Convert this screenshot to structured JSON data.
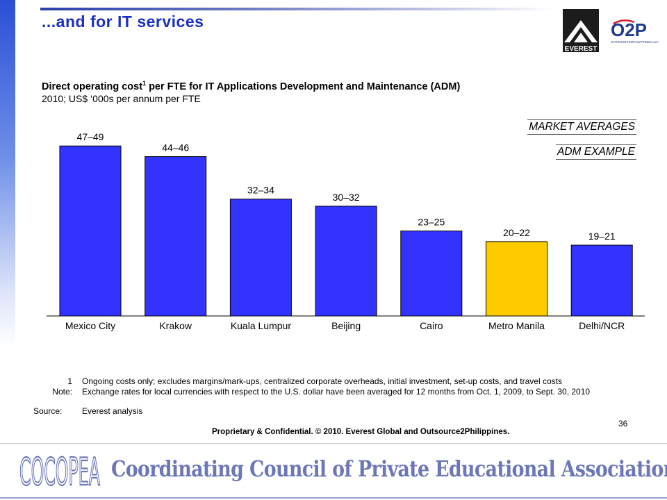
{
  "slide": {
    "title": "...and for IT services",
    "page_number": "36",
    "confidential": "Proprietary & Confidential. © 2010. Everest Global and Outsource2Philippines.",
    "logos": {
      "everest_text": "EVEREST",
      "o2p_text": "O2P",
      "o2p_tagline": "OUTSOURCE2PHILIPPINES.com"
    }
  },
  "chart_data": {
    "type": "bar",
    "title": "Direct operating cost",
    "title_sup": "1",
    "title_rest": " per FTE for IT Applications Development and Maintenance (ADM)",
    "subtitle": "2010; US$ ‘000s per annum per FTE",
    "categories": [
      "Mexico City",
      "Krakow",
      "Kuala Lumpur",
      "Beijing",
      "Cairo",
      "Metro Manila",
      "Delhi/NCR"
    ],
    "range_labels": [
      "47–49",
      "44–46",
      "32–34",
      "30–32",
      "23–25",
      "20–22",
      "19–21"
    ],
    "values": [
      48,
      45,
      33,
      31,
      24,
      21,
      20
    ],
    "highlight_index": 5,
    "ylim": [
      0,
      50
    ],
    "legend": {
      "market": "MARKET AVERAGES",
      "example": "ADM EXAMPLE"
    },
    "colors": {
      "market": "#3333ff",
      "example": "#ffcc00",
      "outline": "#000000"
    }
  },
  "notes": [
    {
      "num": "1",
      "text": "Ongoing costs only; excludes margins/mark-ups, centralized corporate overheads, initial investment, set-up costs, and travel costs"
    },
    {
      "num": "Note:",
      "text": "Exchange rates for local currencies with respect to the U.S. dollar have been averaged for 12 months from Oct. 1, 2009,  to Sept. 30, 2010"
    },
    {
      "num": "Source:",
      "text": "Everest analysis"
    }
  ],
  "footer": {
    "logo_text": "COCOPEA",
    "title": "Coordinating Council of Private Educational Associations"
  }
}
